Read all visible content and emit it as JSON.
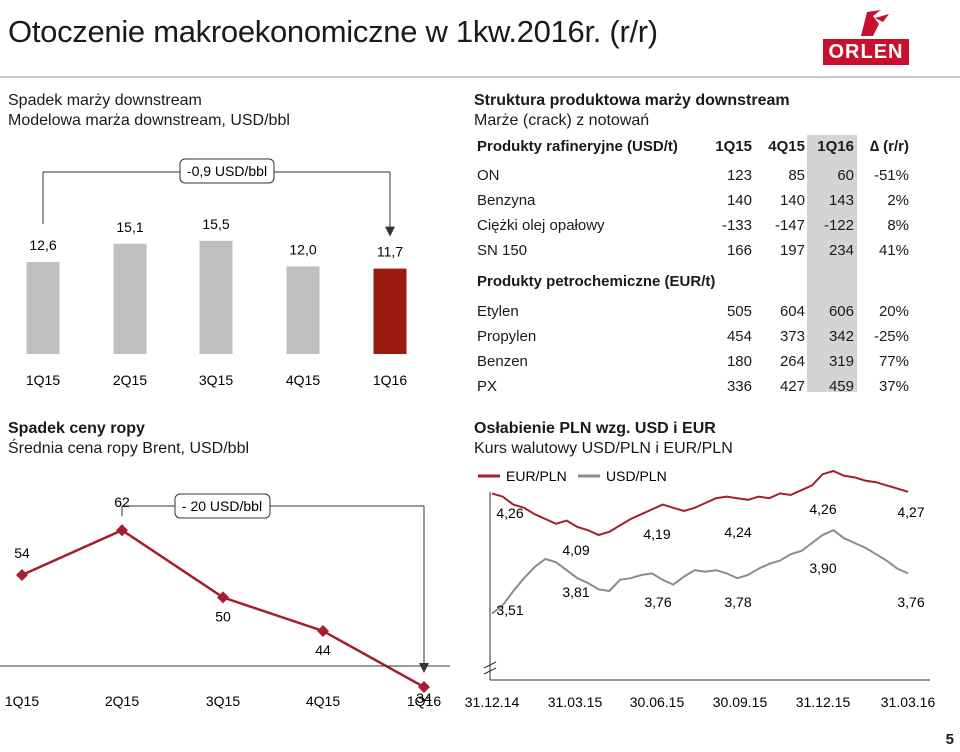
{
  "page": {
    "title": "Otoczenie makroekonomiczne w 1kw.2016r. (r/r)",
    "logo_text": "ORLEN",
    "page_number": "5"
  },
  "colors": {
    "grey_bar": "#bfbfbf",
    "dark_red": "#9b1b10",
    "line_red": "#a41e2d",
    "grey_line": "#8c8c8c"
  },
  "panels": {
    "margin": {
      "title": "Spadek marży downstream",
      "subtitle": "Modelowa marża downstream, USD/bbl",
      "annotation": "-0,9 USD/bbl"
    },
    "brent": {
      "title": "Spadek ceny ropy",
      "subtitle": "Średnia cena ropy Brent, USD/bbl",
      "annotation": "- 20 USD/bbl"
    },
    "table": {
      "title": "Struktura produktowa marży downstream",
      "subtitle": "Marże (crack) z notowań",
      "header_refinery": "Produkty rafineryjne (USD/t)",
      "header_petro": "Produkty petrochemiczne (EUR/t)",
      "columns": [
        "1Q15",
        "4Q15",
        "1Q16",
        "∆ (r/r)"
      ],
      "refinery_rows": [
        {
          "name": "ON",
          "v1": "123",
          "v2": "85",
          "v3": "60",
          "d": "-51%"
        },
        {
          "name": "Benzyna",
          "v1": "140",
          "v2": "140",
          "v3": "143",
          "d": "2%"
        },
        {
          "name": "Ciężki olej opałowy",
          "v1": "-133",
          "v2": "-147",
          "v3": "-122",
          "d": "8%"
        },
        {
          "name": "SN 150",
          "v1": "166",
          "v2": "197",
          "v3": "234",
          "d": "41%"
        }
      ],
      "petro_rows": [
        {
          "name": "Etylen",
          "v1": "505",
          "v2": "604",
          "v3": "606",
          "d": "20%"
        },
        {
          "name": "Propylen",
          "v1": "454",
          "v2": "373",
          "v3": "342",
          "d": "-25%"
        },
        {
          "name": "Benzen",
          "v1": "180",
          "v2": "264",
          "v3": "319",
          "d": "77%"
        },
        {
          "name": "PX",
          "v1": "336",
          "v2": "427",
          "v3": "459",
          "d": "37%"
        }
      ]
    },
    "fx": {
      "title": "Osłabienie PLN wzg. USD i EUR",
      "subtitle": "Kurs walutowy USD/PLN i EUR/PLN"
    }
  },
  "chart_data": [
    {
      "type": "bar",
      "categories": [
        "1Q15",
        "2Q15",
        "3Q15",
        "4Q15",
        "1Q16"
      ],
      "values": [
        12.6,
        15.1,
        15.5,
        12.0,
        11.7
      ],
      "labels": [
        "12,6",
        "15,1",
        "15,5",
        "12,0",
        "11,7"
      ],
      "ylim": [
        0,
        20
      ]
    },
    {
      "type": "line",
      "categories": [
        "1Q15",
        "2Q15",
        "3Q15",
        "4Q15",
        "1Q16"
      ],
      "values": [
        54,
        62,
        50,
        44,
        34
      ],
      "labels": [
        "54",
        "62",
        "50",
        "44",
        "34"
      ],
      "ylim": [
        25,
        70
      ]
    },
    {
      "type": "line",
      "x_ticks": [
        "31.12.14",
        "31.03.15",
        "30.06.15",
        "30.09.15",
        "31.12.15",
        "31.03.16"
      ],
      "ylim": [
        3.3,
        4.4
      ],
      "series": [
        {
          "name": "EUR/PLN",
          "values": [
            4.26,
            4.24,
            4.19,
            4.17,
            4.13,
            4.1,
            4.07,
            4.09,
            4.05,
            4.03,
            4.0,
            4.02,
            4.06,
            4.1,
            4.13,
            4.16,
            4.19,
            4.17,
            4.15,
            4.17,
            4.2,
            4.23,
            4.24,
            4.23,
            4.22,
            4.24,
            4.23,
            4.26,
            4.25,
            4.28,
            4.31,
            4.38,
            4.4,
            4.37,
            4.36,
            4.34,
            4.33,
            4.31,
            4.29,
            4.27
          ],
          "labels": [
            "4,26",
            "4,09",
            "4,19",
            "4,24",
            "4,26",
            "4,27"
          ]
        },
        {
          "name": "USD/PLN",
          "values": [
            3.51,
            3.56,
            3.65,
            3.73,
            3.8,
            3.85,
            3.83,
            3.78,
            3.73,
            3.7,
            3.66,
            3.65,
            3.72,
            3.73,
            3.75,
            3.76,
            3.72,
            3.69,
            3.74,
            3.78,
            3.77,
            3.78,
            3.76,
            3.73,
            3.75,
            3.79,
            3.82,
            3.84,
            3.88,
            3.9,
            3.95,
            4.0,
            4.03,
            3.98,
            3.95,
            3.92,
            3.88,
            3.84,
            3.79,
            3.76
          ],
          "labels": [
            "3,51",
            "3,81",
            "3,76",
            "3,78",
            "3,90",
            "3,76"
          ]
        }
      ]
    }
  ]
}
